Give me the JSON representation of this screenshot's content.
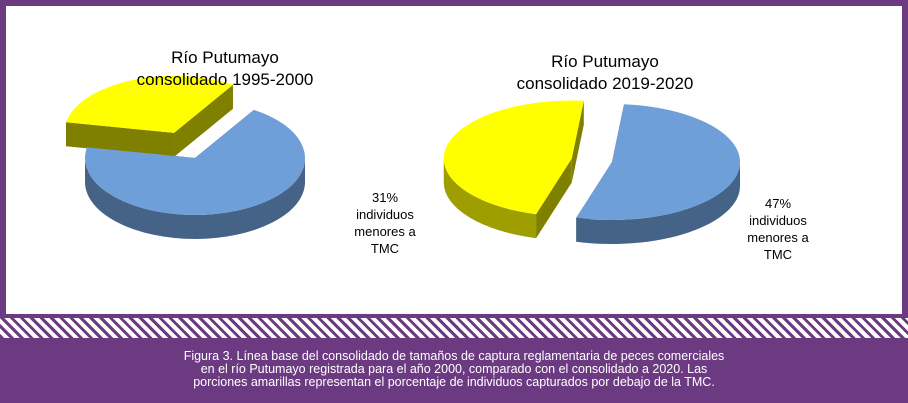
{
  "chart_data": [
    {
      "type": "pie",
      "title_lines": [
        "Río Putumayo",
        "consolidado 1995-2000"
      ],
      "slices": [
        {
          "label": "",
          "value": 69,
          "color": "#6f9fd8"
        },
        {
          "label_lines": [
            "31%",
            "individuos",
            "menores a",
            "TMC"
          ],
          "value": 31,
          "color": "#ffff00"
        }
      ]
    },
    {
      "type": "pie",
      "title_lines": [
        "Río Putumayo",
        "consolidado 2019-2020"
      ],
      "slices": [
        {
          "label": "",
          "value": 53,
          "color": "#6f9fd8"
        },
        {
          "label_lines": [
            "47%",
            "individuos",
            "menores a",
            "TMC"
          ],
          "value": 47,
          "color": "#ffff00"
        }
      ]
    }
  ],
  "caption_lines": [
    "Figura 3. Línea base del consolidado de tamaños de captura reglamentaria de peces comerciales",
    "en el río Putumayo registrada para el año 2000, comparado con el consolidado a 2020. Las",
    "porciones amarillas representan el porcentaje de individuos capturados por debajo de la TMC."
  ]
}
